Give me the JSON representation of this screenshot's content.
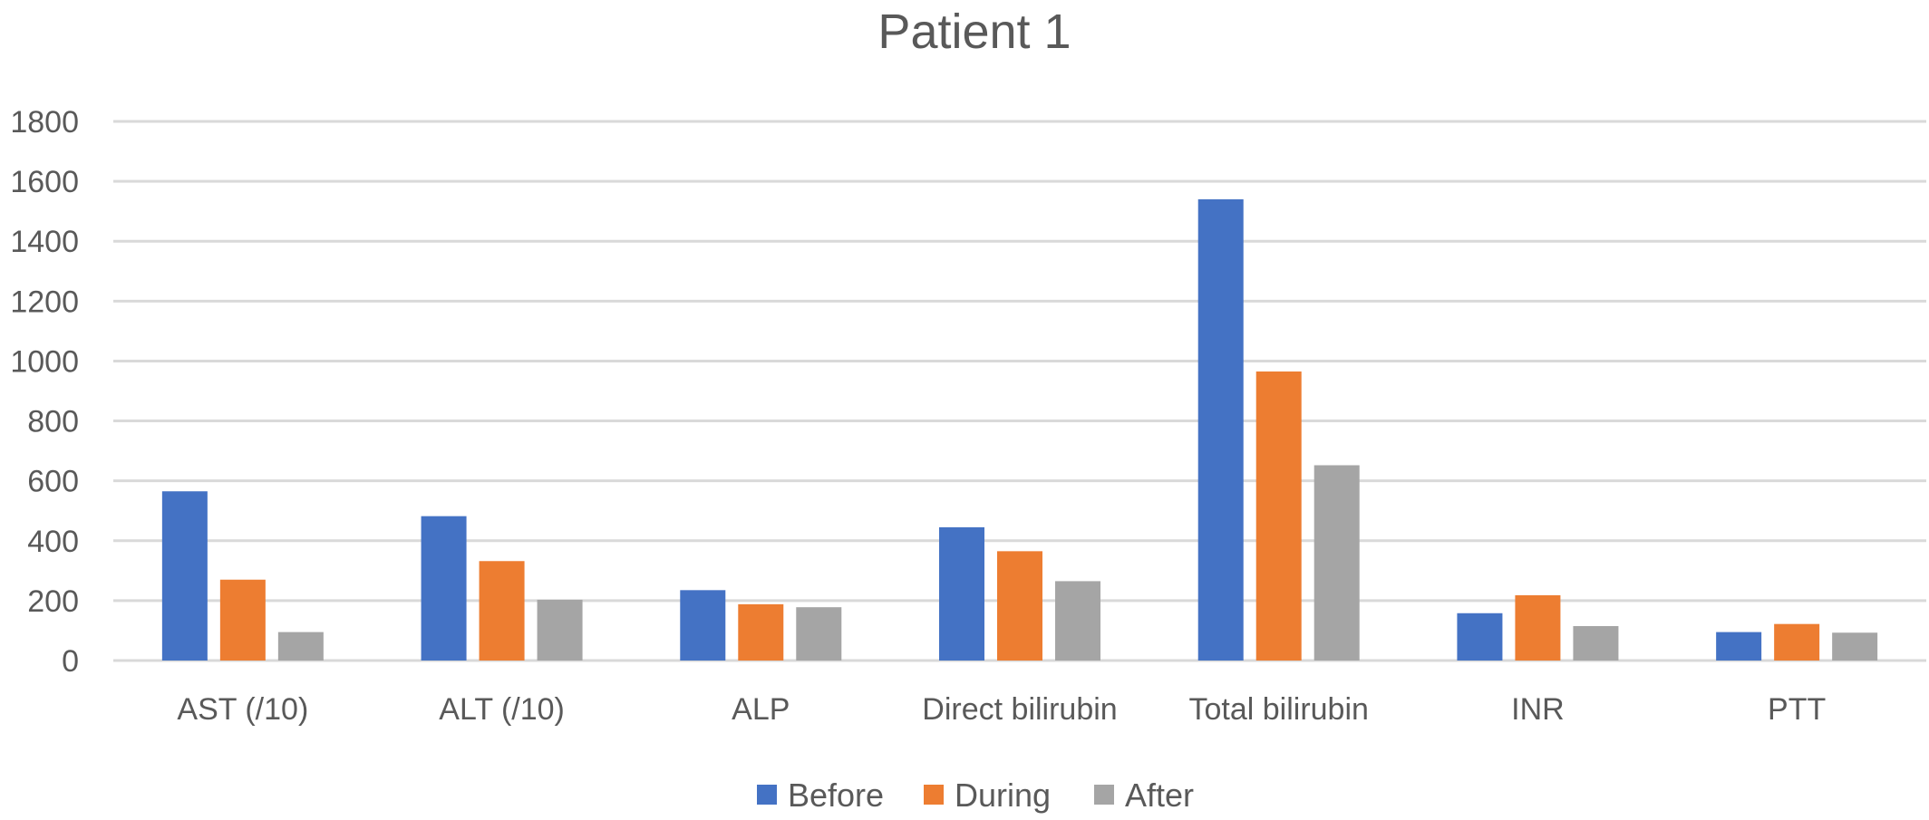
{
  "chart_data": {
    "type": "bar",
    "title": "Patient 1",
    "xlabel": "",
    "ylabel": "",
    "ylim": [
      0,
      1800
    ],
    "yticks": [
      0,
      200,
      400,
      600,
      800,
      1000,
      1200,
      1400,
      1600,
      1800
    ],
    "grid": true,
    "legend_position": "bottom",
    "categories": [
      "AST (/10)",
      "ALT (/10)",
      "ALP",
      "Direct bilirubin",
      "Total bilirubin",
      "INR",
      "PTT"
    ],
    "series": [
      {
        "name": "Before",
        "color": "#4472c4",
        "values": [
          565,
          482,
          235,
          445,
          1540,
          158,
          95
        ]
      },
      {
        "name": "During",
        "color": "#ed7d31",
        "values": [
          270,
          332,
          188,
          365,
          965,
          218,
          122
        ]
      },
      {
        "name": "After",
        "color": "#a5a5a5",
        "values": [
          95,
          203,
          178,
          265,
          652,
          115,
          93
        ]
      }
    ]
  }
}
